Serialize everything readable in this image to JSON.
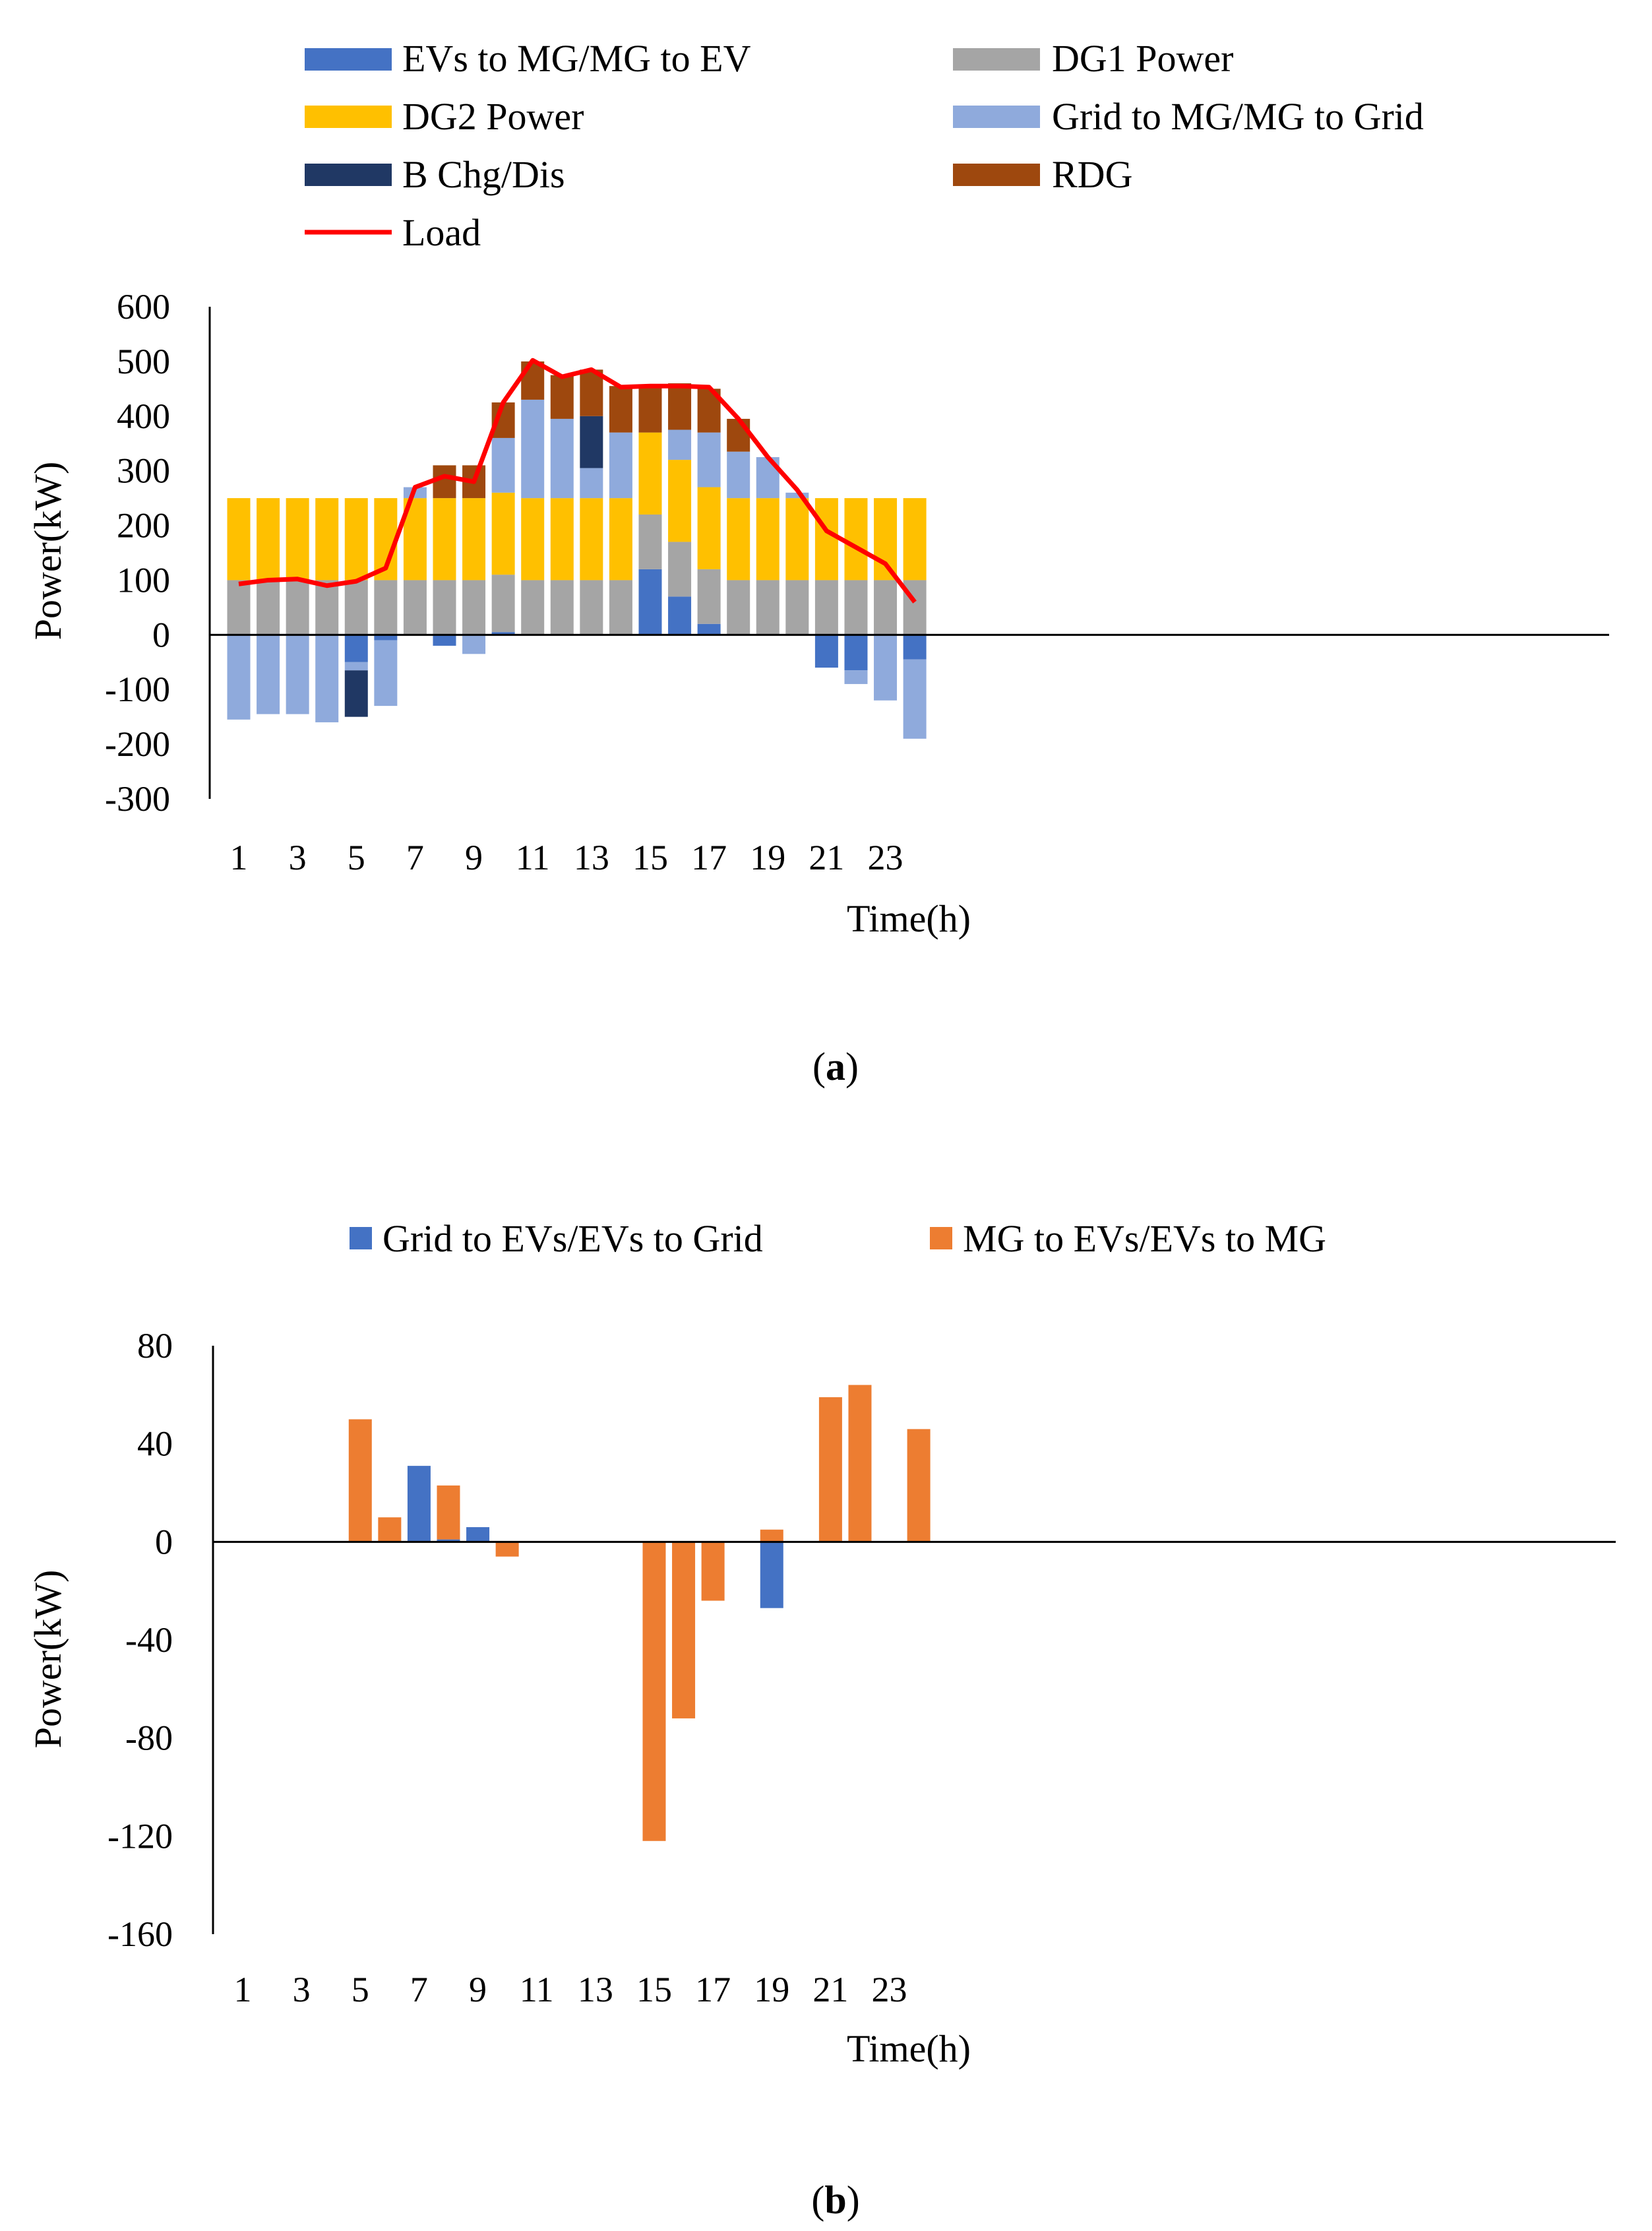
{
  "chart_data": [
    {
      "type": "bar",
      "stacked": true,
      "caption_letter": "a",
      "xlabel": "Time(h)",
      "ylabel": "Power(kW)",
      "ylim": [
        -300,
        600
      ],
      "yticks": [
        -300,
        -200,
        -100,
        0,
        100,
        200,
        300,
        400,
        500,
        600
      ],
      "x": [
        1,
        2,
        3,
        4,
        5,
        6,
        7,
        8,
        9,
        10,
        11,
        12,
        13,
        14,
        15,
        16,
        17,
        18,
        19,
        20,
        21,
        22,
        23,
        24
      ],
      "xtick_labels": [
        "1",
        "3",
        "5",
        "7",
        "9",
        "11",
        "13",
        "15",
        "17",
        "19",
        "21",
        "23"
      ],
      "series": [
        {
          "name": "EVs to MG/MG to EV",
          "color": "#4472C4",
          "values": [
            0,
            0,
            0,
            0,
            -50,
            -10,
            0,
            -20,
            0,
            5,
            0,
            0,
            0,
            0,
            120,
            70,
            20,
            0,
            0,
            0,
            -60,
            -65,
            0,
            -45
          ]
        },
        {
          "name": "DG1 Power",
          "color": "#A5A5A5",
          "values": [
            100,
            100,
            100,
            100,
            100,
            100,
            100,
            100,
            100,
            105,
            100,
            100,
            100,
            100,
            100,
            100,
            100,
            100,
            100,
            100,
            100,
            100,
            100,
            100
          ]
        },
        {
          "name": "DG2 Power",
          "color": "#FFC000",
          "values": [
            150,
            150,
            150,
            150,
            150,
            150,
            150,
            150,
            150,
            150,
            150,
            150,
            150,
            150,
            150,
            150,
            150,
            150,
            150,
            150,
            150,
            150,
            150,
            150
          ]
        },
        {
          "name": "Grid to MG/MG to Grid",
          "color": "#8FAADC",
          "values": [
            -155,
            -145,
            -145,
            -160,
            -15,
            -120,
            20,
            0,
            -35,
            100,
            180,
            145,
            55,
            120,
            0,
            55,
            100,
            85,
            75,
            10,
            0,
            -25,
            -120,
            -145
          ]
        },
        {
          "name": "B Chg/Dis",
          "color": "#203864",
          "values": [
            0,
            0,
            0,
            0,
            -85,
            0,
            0,
            0,
            0,
            0,
            0,
            0,
            95,
            0,
            0,
            0,
            0,
            0,
            0,
            0,
            0,
            0,
            0,
            0
          ]
        },
        {
          "name": "RDG",
          "color": "#9E480E",
          "values": [
            0,
            0,
            0,
            0,
            0,
            0,
            0,
            60,
            60,
            65,
            70,
            80,
            85,
            85,
            85,
            85,
            80,
            60,
            0,
            0,
            0,
            0,
            0,
            0
          ]
        }
      ],
      "line_series": {
        "name": "Load",
        "color": "#FF0000",
        "values": [
          93,
          100,
          102,
          90,
          98,
          122,
          270,
          290,
          280,
          425,
          502,
          472,
          485,
          453,
          455,
          455,
          453,
          395,
          325,
          265,
          190,
          160,
          130,
          60
        ]
      },
      "legend": [
        "EVs to MG/MG to EV",
        "DG1 Power",
        "DG2 Power",
        "Grid to MG/MG to Grid",
        "B Chg/Dis",
        "RDG",
        "Load"
      ]
    },
    {
      "type": "bar",
      "stacked": true,
      "caption_letter": "b",
      "xlabel": "Time(h)",
      "ylabel": "Power(kW)",
      "ylim": [
        -160,
        80
      ],
      "yticks": [
        -160,
        -120,
        -80,
        -40,
        0,
        40,
        80
      ],
      "x": [
        1,
        2,
        3,
        4,
        5,
        6,
        7,
        8,
        9,
        10,
        11,
        12,
        13,
        14,
        15,
        16,
        17,
        18,
        19,
        20,
        21,
        22,
        23,
        24
      ],
      "xtick_labels": [
        "1",
        "3",
        "5",
        "7",
        "9",
        "11",
        "13",
        "15",
        "17",
        "19",
        "21",
        "23"
      ],
      "series": [
        {
          "name": "Grid to EVs/EVs to Grid",
          "color": "#4472C4",
          "values": [
            0,
            0,
            0,
            0,
            0,
            0,
            31,
            1,
            6,
            0,
            0,
            0,
            0,
            0,
            0,
            0,
            0,
            0,
            -27,
            0,
            0,
            0,
            0,
            0
          ]
        },
        {
          "name": "MG to EVs/EVs to MG",
          "color": "#ED7D31",
          "values": [
            0,
            0,
            0,
            0,
            50,
            10,
            0,
            22,
            0,
            -6,
            0,
            0,
            0,
            0,
            -122,
            -72,
            -24,
            0,
            5,
            0,
            59,
            64,
            0,
            46
          ]
        }
      ],
      "legend": [
        "Grid to EVs/EVs to Grid",
        "MG to EVs/EVs to MG"
      ]
    }
  ]
}
